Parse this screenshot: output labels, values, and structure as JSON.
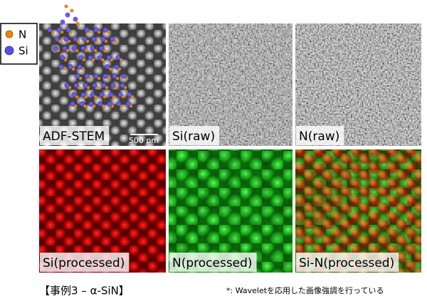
{
  "legend": [
    {
      "label": "N"
    },
    {
      "label": "Si"
    }
  ],
  "panels": [
    {
      "label": "ADF-STEM"
    },
    {
      "label": "Si(raw)"
    },
    {
      "label": "N(raw)"
    },
    {
      "label": "Si(processed)"
    },
    {
      "label": "N(processed)"
    },
    {
      "label": "Si-N(processed)"
    }
  ],
  "scale_bar": "500 pm",
  "caption": "【事例3 – α-SiN】",
  "footnote": "*:  Waveletを応用した画像強調を行っている"
}
